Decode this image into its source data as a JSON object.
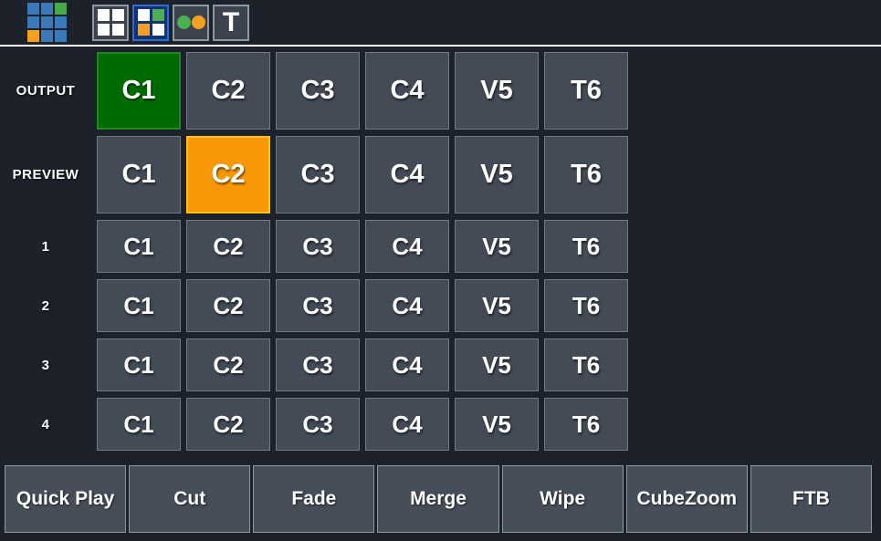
{
  "toolbar": {
    "logo": {
      "icon": "app-logo-icon",
      "cells": [
        "blue",
        "blue",
        "green",
        "blue",
        "blue",
        "blue",
        "orange",
        "blue",
        "blue"
      ]
    },
    "buttons": [
      {
        "id": "grid-2x2-white",
        "icon": "grid-2x2-icon",
        "selected": false
      },
      {
        "id": "grid-2x2-colored",
        "icon": "colored-grid-icon",
        "selected": true
      },
      {
        "id": "two-dots",
        "icon": "two-dots-icon",
        "selected": false
      },
      {
        "id": "text-tool",
        "icon": "letter-t-icon",
        "label": "T",
        "selected": false
      }
    ]
  },
  "switcher": {
    "rows": [
      {
        "label": "OUTPUT",
        "cells": [
          {
            "label": "C1",
            "state": "program"
          },
          {
            "label": "C2",
            "state": "default"
          },
          {
            "label": "C3",
            "state": "default"
          },
          {
            "label": "C4",
            "state": "default"
          },
          {
            "label": "V5",
            "state": "default"
          },
          {
            "label": "T6",
            "state": "default"
          }
        ]
      },
      {
        "label": "PREVIEW",
        "cells": [
          {
            "label": "C1",
            "state": "default"
          },
          {
            "label": "C2",
            "state": "preview"
          },
          {
            "label": "C3",
            "state": "default"
          },
          {
            "label": "C4",
            "state": "default"
          },
          {
            "label": "V5",
            "state": "default"
          },
          {
            "label": "T6",
            "state": "default"
          }
        ]
      },
      {
        "label": "1",
        "cells": [
          {
            "label": "C1",
            "state": "default"
          },
          {
            "label": "C2",
            "state": "default"
          },
          {
            "label": "C3",
            "state": "default"
          },
          {
            "label": "C4",
            "state": "default"
          },
          {
            "label": "V5",
            "state": "default"
          },
          {
            "label": "T6",
            "state": "default"
          }
        ]
      },
      {
        "label": "2",
        "cells": [
          {
            "label": "C1",
            "state": "default"
          },
          {
            "label": "C2",
            "state": "default"
          },
          {
            "label": "C3",
            "state": "default"
          },
          {
            "label": "C4",
            "state": "default"
          },
          {
            "label": "V5",
            "state": "default"
          },
          {
            "label": "T6",
            "state": "default"
          }
        ]
      },
      {
        "label": "3",
        "cells": [
          {
            "label": "C1",
            "state": "default"
          },
          {
            "label": "C2",
            "state": "default"
          },
          {
            "label": "C3",
            "state": "default"
          },
          {
            "label": "C4",
            "state": "default"
          },
          {
            "label": "V5",
            "state": "default"
          },
          {
            "label": "T6",
            "state": "default"
          }
        ]
      },
      {
        "label": "4",
        "cells": [
          {
            "label": "C1",
            "state": "default"
          },
          {
            "label": "C2",
            "state": "default"
          },
          {
            "label": "C3",
            "state": "default"
          },
          {
            "label": "C4",
            "state": "default"
          },
          {
            "label": "V5",
            "state": "default"
          },
          {
            "label": "T6",
            "state": "default"
          }
        ]
      }
    ]
  },
  "bottom_bar": {
    "buttons": [
      {
        "label": "Quick Play"
      },
      {
        "label": "Cut"
      },
      {
        "label": "Fade"
      },
      {
        "label": "Merge"
      },
      {
        "label": "Wipe"
      },
      {
        "label": "CubeZoom"
      },
      {
        "label": "FTB"
      }
    ]
  },
  "colors": {
    "background": "#1c212a",
    "program_green": "#016a01",
    "preview_orange": "#f99806",
    "button_gray": "#424b56",
    "selected_tool_blue": "#2e6bd8",
    "logo_blue": "#3b79b8",
    "logo_green": "#46a94a",
    "logo_orange": "#f5a023"
  }
}
